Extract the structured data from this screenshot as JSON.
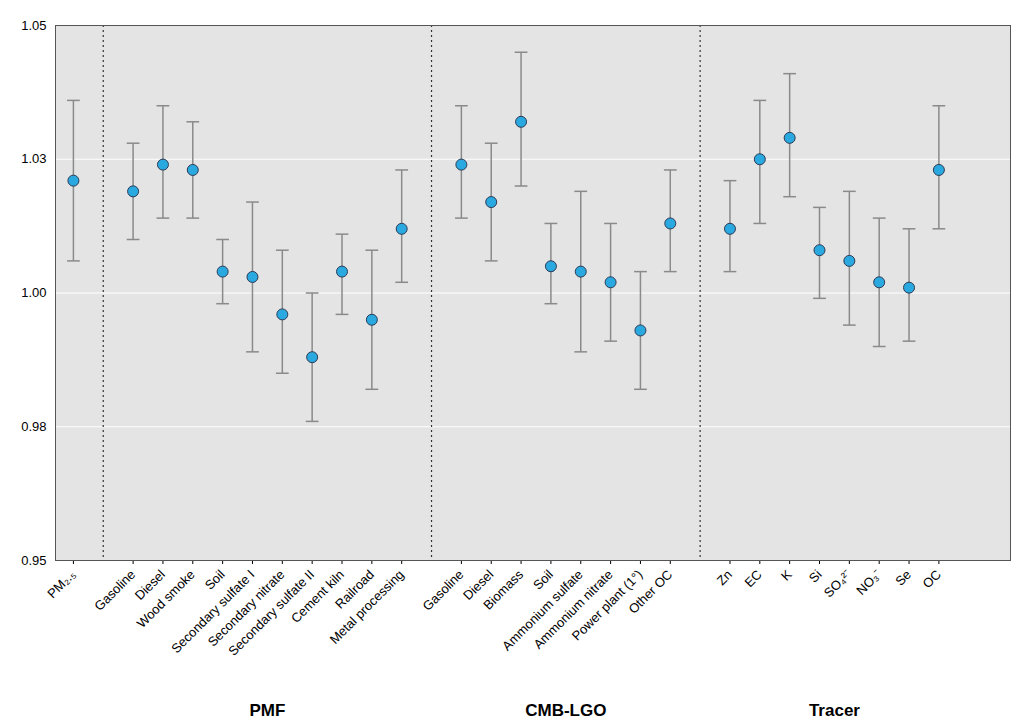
{
  "chart_data": {
    "type": "scatter",
    "marker": "circle",
    "color": "#2aa9e0",
    "grid": true,
    "ylim": [
      0.95,
      1.05
    ],
    "yticks": [
      0.95,
      {
        "value": 0.975,
        "label": "0.98"
      },
      {
        "value": 1,
        "label": "1.00"
      },
      {
        "value": 1.025,
        "label": "1.03"
      },
      1.05
    ],
    "panels": [
      {
        "categories": [
          "PM₂.₅"
        ],
        "values": [
          1.021
        ],
        "lower": [
          1.006
        ],
        "upper": [
          1.036
        ]
      },
      {
        "name": "PMF",
        "categories": [
          "Gasoline",
          "Diesel",
          "Wood smoke",
          "Soil",
          "Secondary sulfate I",
          "Secondary nitrate",
          "Secondary sulfate II",
          "Cement kiln",
          "Railroad",
          "Metal processing"
        ],
        "values": [
          1.019,
          1.024,
          1.023,
          1.004,
          1.003,
          0.996,
          0.988,
          1.004,
          0.995,
          1.012
        ],
        "lower": [
          1.01,
          1.014,
          1.014,
          0.998,
          0.989,
          0.985,
          0.976,
          0.996,
          0.982,
          1.002
        ],
        "upper": [
          1.028,
          1.035,
          1.032,
          1.01,
          1.017,
          1.008,
          1.0,
          1.011,
          1.008,
          1.023
        ]
      },
      {
        "name": "CMB-LGO",
        "categories": [
          "Gasoline",
          "Diesel",
          "Biomass",
          "Soil",
          "Ammonium sulfate",
          "Ammonium nitrate",
          "Power plant (1°)",
          "Other OC"
        ],
        "values": [
          1.024,
          1.017,
          1.032,
          1.005,
          1.004,
          1.002,
          0.993,
          1.013
        ],
        "lower": [
          1.014,
          1.006,
          1.02,
          0.998,
          0.989,
          0.991,
          0.982,
          1.004
        ],
        "upper": [
          1.035,
          1.028,
          1.045,
          1.013,
          1.019,
          1.013,
          1.004,
          1.023
        ]
      },
      {
        "name": "Tracer",
        "categories": [
          "Zn",
          "EC",
          "K",
          "Si",
          "SO₄²⁻",
          "NO₃⁻",
          "Se",
          "OC"
        ],
        "values": [
          1.012,
          1.025,
          1.029,
          1.008,
          1.006,
          1.002,
          1.001,
          1.023
        ],
        "lower": [
          1.004,
          1.013,
          1.018,
          0.999,
          0.994,
          0.99,
          0.991,
          1.012
        ],
        "upper": [
          1.021,
          1.036,
          1.041,
          1.016,
          1.019,
          1.014,
          1.012,
          1.035
        ]
      }
    ]
  }
}
